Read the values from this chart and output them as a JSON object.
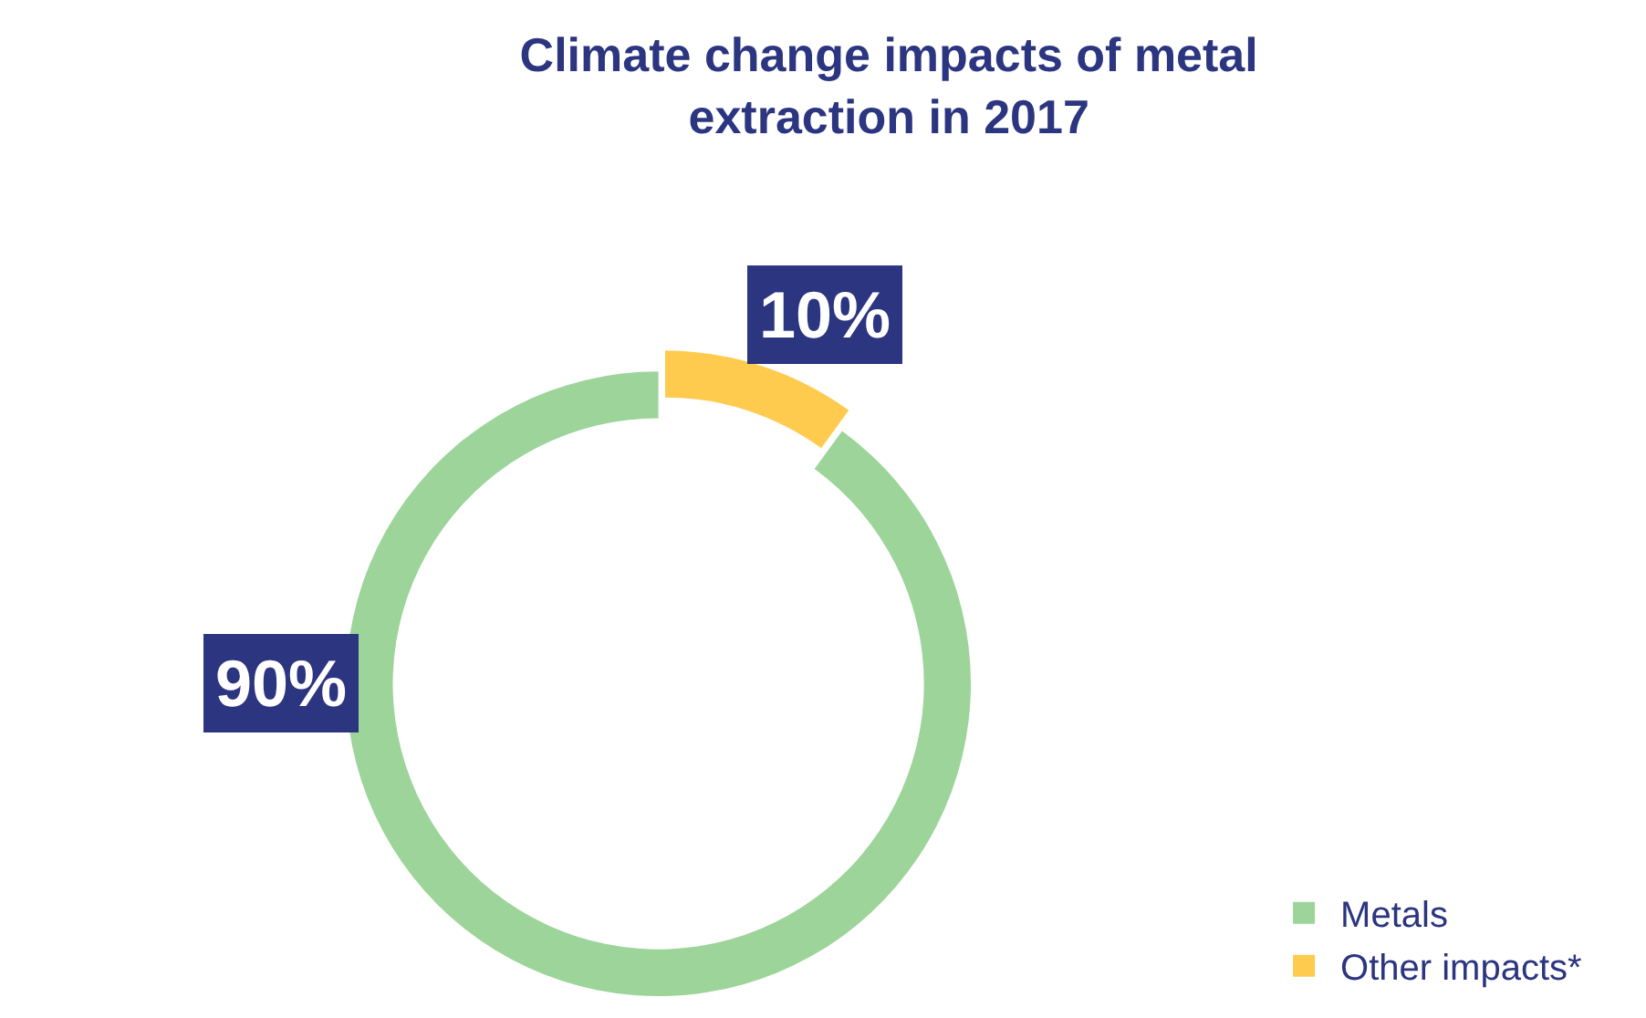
{
  "chart_data": {
    "type": "donut",
    "title": "Climate change impacts of metal extraction in 2017",
    "categories": [
      "Metals",
      "Other impacts*"
    ],
    "values": [
      90,
      10
    ],
    "colors": [
      "#9dd49a",
      "#fecb4f"
    ],
    "value_labels": [
      "90%",
      "10%"
    ],
    "legend": "bottom right"
  }
}
